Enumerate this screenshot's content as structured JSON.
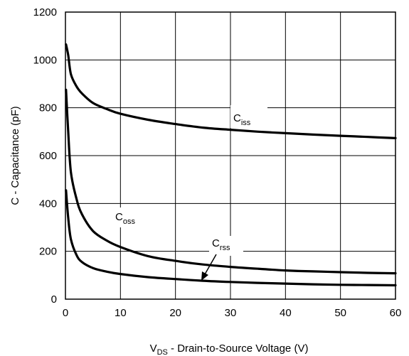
{
  "chart_data": {
    "type": "line",
    "title": "",
    "xlabel": {
      "main": "V",
      "sub": "DS",
      "rest": " - Drain-to-Source Voltage (V)"
    },
    "ylabel": "C - Capacitance (pF)",
    "xlim": [
      0,
      60
    ],
    "ylim": [
      0,
      1200
    ],
    "xticks": [
      0,
      10,
      20,
      30,
      40,
      50,
      60
    ],
    "yticks": [
      0,
      200,
      400,
      600,
      800,
      1000,
      1200
    ],
    "grid": true,
    "series": [
      {
        "name": {
          "main": "C",
          "sub": "iss"
        },
        "points": [
          [
            0.1,
            1065
          ],
          [
            0.5,
            1020
          ],
          [
            1,
            940
          ],
          [
            2,
            890
          ],
          [
            3,
            860
          ],
          [
            5,
            820
          ],
          [
            7.5,
            795
          ],
          [
            10,
            775
          ],
          [
            15,
            750
          ],
          [
            20,
            732
          ],
          [
            25,
            717
          ],
          [
            30,
            708
          ],
          [
            35,
            700
          ],
          [
            40,
            694
          ],
          [
            45,
            688
          ],
          [
            50,
            683
          ],
          [
            55,
            678
          ],
          [
            60,
            673
          ]
        ]
      },
      {
        "name": {
          "main": "C",
          "sub": "oss"
        },
        "points": [
          [
            0.1,
            875
          ],
          [
            0.5,
            700
          ],
          [
            1,
            530
          ],
          [
            2,
            420
          ],
          [
            3,
            355
          ],
          [
            5,
            285
          ],
          [
            7.5,
            245
          ],
          [
            10,
            218
          ],
          [
            15,
            180
          ],
          [
            20,
            160
          ],
          [
            25,
            145
          ],
          [
            30,
            135
          ],
          [
            35,
            127
          ],
          [
            40,
            120
          ],
          [
            45,
            116
          ],
          [
            50,
            113
          ],
          [
            55,
            110
          ],
          [
            60,
            108
          ]
        ]
      },
      {
        "name": {
          "main": "C",
          "sub": "rss"
        },
        "points": [
          [
            0.1,
            455
          ],
          [
            0.5,
            340
          ],
          [
            1,
            250
          ],
          [
            2,
            185
          ],
          [
            3,
            155
          ],
          [
            5,
            130
          ],
          [
            7.5,
            115
          ],
          [
            10,
            105
          ],
          [
            15,
            92
          ],
          [
            20,
            84
          ],
          [
            25,
            77
          ],
          [
            30,
            72
          ],
          [
            35,
            68
          ],
          [
            40,
            65
          ],
          [
            45,
            62
          ],
          [
            50,
            60
          ],
          [
            55,
            59
          ],
          [
            60,
            58
          ]
        ]
      }
    ]
  }
}
